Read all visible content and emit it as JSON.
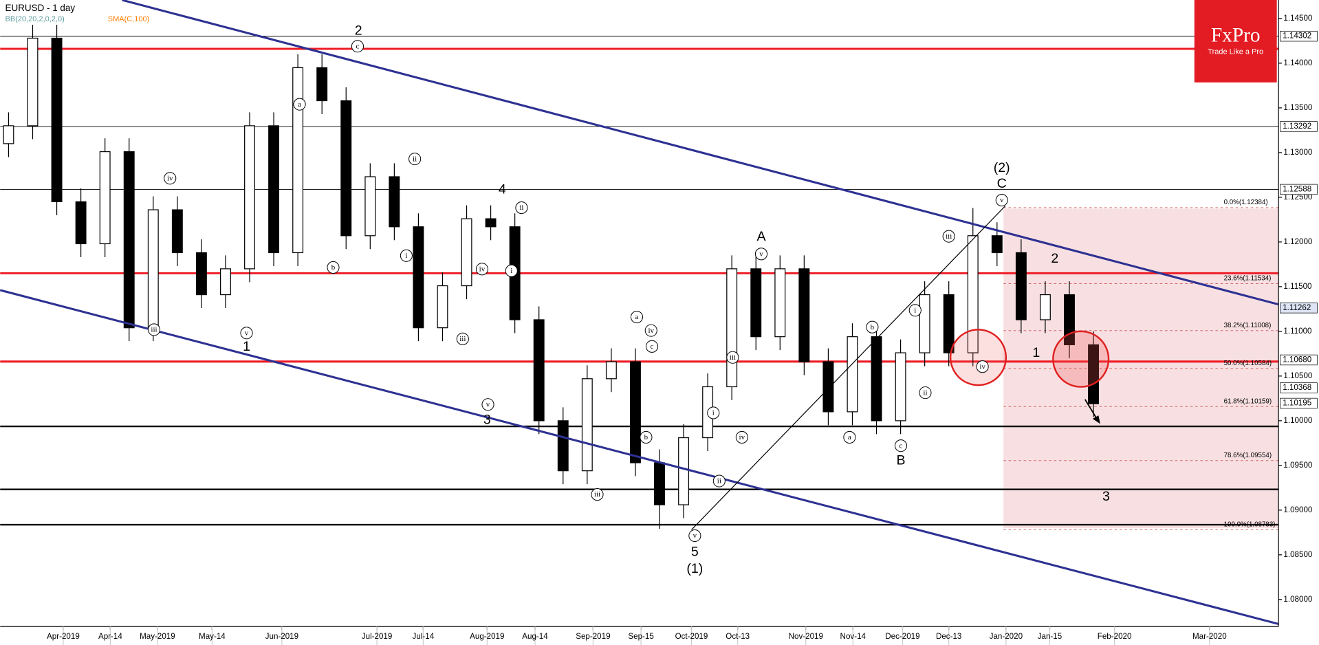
{
  "chart_data": {
    "type": "candlestick",
    "title": "EURUSD - 1 day",
    "indicators": [
      "BB(20,20,2,0,2,0)",
      "SMA(C,100)"
    ],
    "logo": {
      "name": "FxPro",
      "tagline": "Trade Like a Pro"
    },
    "ylim": [
      1.07698,
      1.14707
    ],
    "yticks": [
      {
        "value": 1.145,
        "label": "1.14500"
      },
      {
        "value": 1.14,
        "label": "1.14000"
      },
      {
        "value": 1.135,
        "label": "1.13500"
      },
      {
        "value": 1.13,
        "label": "1.13000"
      },
      {
        "value": 1.125,
        "label": "1.12500"
      },
      {
        "value": 1.12,
        "label": "1.12000"
      },
      {
        "value": 1.115,
        "label": "1.11500"
      },
      {
        "value": 1.11,
        "label": "1.11000"
      },
      {
        "value": 1.105,
        "label": "1.10500"
      },
      {
        "value": 1.1,
        "label": "1.10000"
      },
      {
        "value": 1.095,
        "label": "1.09500"
      },
      {
        "value": 1.09,
        "label": "1.09000"
      },
      {
        "value": 1.085,
        "label": "1.08500"
      },
      {
        "value": 1.08,
        "label": "1.08000"
      }
    ],
    "x_labels": [
      "Apr-2019",
      "Apr-14",
      "May-2019",
      "May-14",
      "Jun-2019",
      "Jul-2019",
      "Jul-14",
      "Aug-2019",
      "Aug-14",
      "Sep-2019",
      "Sep-15",
      "Oct-2019",
      "Oct-13",
      "Nov-2019",
      "Nov-14",
      "Dec-2019",
      "Dec-13",
      "Jan-2020",
      "Jan-15",
      "Feb-2020",
      "Mar-2020"
    ],
    "open": [
      1.131,
      1.133,
      1.1428,
      1.1245,
      1.1198,
      1.1301,
      1.1104,
      1.1236,
      1.1188,
      1.1141,
      1.117,
      1.133,
      1.1188,
      1.1395,
      1.1358,
      1.1207,
      1.1273,
      1.1217,
      1.1104,
      1.1151,
      1.1226,
      1.1217,
      1.1113,
      1.1,
      1.0944,
      1.1047,
      1.1066,
      1.0953,
      1.0906,
      1.0981,
      1.1038,
      1.117,
      1.1094,
      1.117,
      1.1066,
      1.101,
      1.1094,
      1.1,
      1.1076,
      1.1141,
      1.1076,
      1.1207,
      1.1188,
      1.1113,
      1.1141,
      1.1085
    ],
    "high": [
      1.1345,
      1.1443,
      1.1443,
      1.126,
      1.1316,
      1.1316,
      1.1251,
      1.1251,
      1.1203,
      1.1185,
      1.1345,
      1.1345,
      1.141,
      1.141,
      1.1373,
      1.1288,
      1.1288,
      1.1232,
      1.1166,
      1.1241,
      1.1241,
      1.1232,
      1.1128,
      1.1015,
      1.1062,
      1.1081,
      1.1081,
      1.0968,
      1.0996,
      1.1053,
      1.1185,
      1.1185,
      1.1185,
      1.1185,
      1.1081,
      1.1109,
      1.1109,
      1.1091,
      1.1156,
      1.1156,
      1.1238,
      1.1222,
      1.1203,
      1.1156,
      1.1156,
      1.11
    ],
    "low": [
      1.1295,
      1.1315,
      1.123,
      1.1183,
      1.1183,
      1.1089,
      1.1089,
      1.1173,
      1.1126,
      1.1126,
      1.1155,
      1.1173,
      1.1173,
      1.1343,
      1.1192,
      1.1192,
      1.1202,
      1.1089,
      1.1089,
      1.1136,
      1.1202,
      1.1098,
      1.0985,
      1.0929,
      1.0929,
      1.1032,
      1.0938,
      1.0879,
      1.0891,
      1.0966,
      1.1023,
      1.1079,
      1.1079,
      1.1051,
      1.0995,
      1.0995,
      1.0985,
      1.0985,
      1.1061,
      1.1061,
      1.1061,
      1.1173,
      1.1098,
      1.1098,
      1.107,
      1.1004
    ],
    "close": [
      1.133,
      1.1428,
      1.1245,
      1.1198,
      1.1301,
      1.1104,
      1.1236,
      1.1188,
      1.1141,
      1.117,
      1.133,
      1.1188,
      1.1395,
      1.1358,
      1.1207,
      1.1273,
      1.1217,
      1.1104,
      1.1151,
      1.1226,
      1.1217,
      1.1113,
      1.1,
      1.0944,
      1.1047,
      1.1066,
      1.0953,
      1.0906,
      1.0981,
      1.1038,
      1.117,
      1.1094,
      1.117,
      1.1066,
      1.101,
      1.1094,
      1.1,
      1.1076,
      1.1141,
      1.1076,
      1.1207,
      1.1188,
      1.1113,
      1.1141,
      1.1085,
      1.1019
    ],
    "price_labels": [
      {
        "value": 1.14302,
        "label": "1.14302",
        "line": true
      },
      {
        "value": 1.13292,
        "label": "1.13292",
        "line": true
      },
      {
        "value": 1.12588,
        "label": "1.12588",
        "line": true
      },
      {
        "value": 1.11262,
        "label": "1.11262",
        "line": false
      },
      {
        "value": 1.1068,
        "label": "1.10680",
        "line": false
      },
      {
        "value": 1.10368,
        "label": "1.10368",
        "line": false
      },
      {
        "value": 1.10195,
        "label": "1.10195",
        "line": false
      }
    ],
    "red_lines": [
      1.14161,
      1.1165,
      1.10662
    ],
    "support_lines": [
      1.09937,
      1.09232,
      1.08837
    ],
    "fib_levels": [
      {
        "value": 1.12384,
        "label": "0.0%(1.12384)"
      },
      {
        "value": 1.11534,
        "label": "23.6%(1.11534)"
      },
      {
        "value": 1.11008,
        "label": "38.2%(1.11008)"
      },
      {
        "value": 1.10584,
        "label": "50.0%(1.10584)"
      },
      {
        "value": 1.10159,
        "label": "61.8%(1.10159)"
      },
      {
        "value": 1.09554,
        "label": "78.6%(1.09554)"
      },
      {
        "value": 1.08783,
        "label": "100.0%(1.08783)"
      }
    ],
    "wave_labels": [
      "2",
      "(2)",
      "C",
      "A",
      "4",
      "1",
      "3",
      "5",
      "(1)",
      "B",
      "1",
      "2",
      "3"
    ],
    "circled_labels": [
      "iii",
      "iv",
      "v",
      "a",
      "b",
      "c",
      "ii",
      "i",
      "ii",
      "iv",
      "i",
      "iii",
      "v",
      "iii",
      "a",
      "iv",
      "c",
      "b",
      "i",
      "iv",
      "ii",
      "iii",
      "v",
      "v",
      "b",
      "i",
      "a",
      "c",
      "ii",
      "iii",
      "iv",
      "v"
    ]
  }
}
